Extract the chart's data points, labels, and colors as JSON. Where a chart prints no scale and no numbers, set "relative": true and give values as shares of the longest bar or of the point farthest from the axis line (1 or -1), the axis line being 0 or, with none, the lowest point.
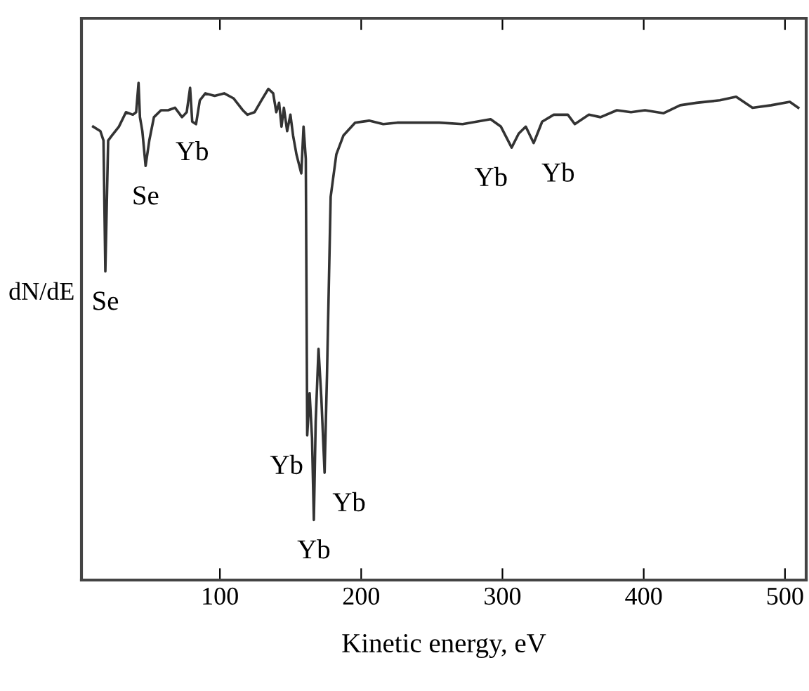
{
  "chart_data": {
    "type": "line",
    "relative": true,
    "xlabel": "Kinetic energy, eV",
    "ylabel": "dN/dE",
    "xlim": [
      2,
      515
    ],
    "xticks": [
      100,
      200,
      300,
      400,
      500
    ],
    "grid": false,
    "marker": "none",
    "line_style": "solid",
    "series": [
      {
        "color": "#333333",
        "x": [
          10.3,
          15.4,
          17.6,
          18.9,
          20.9,
          23.5,
          28.5,
          33.5,
          38.4,
          40.7,
          42.4,
          43.4,
          45.1,
          47.4,
          50.0,
          53.3,
          58.3,
          63.3,
          68.2,
          73.2,
          76.5,
          78.9,
          80.4,
          83.1,
          85.8,
          89.7,
          96.3,
          103.0,
          109.6,
          116.2,
          119.5,
          124.5,
          129.4,
          134.3,
          137.7,
          139.9,
          141.9,
          143.6,
          145.3,
          147.6,
          149.9,
          151.8,
          154.2,
          157.6,
          159.2,
          160.8,
          161.8,
          163.5,
          165.2,
          166.5,
          167.8,
          169.8,
          171.8,
          174.1,
          175.8,
          178.4,
          182.4,
          187.4,
          195.7,
          205.6,
          215.6,
          225.5,
          235.3,
          255.2,
          271.8,
          291.6,
          298.9,
          306.5,
          311.5,
          316.5,
          322.1,
          328.1,
          336.3,
          346.3,
          351.2,
          361.2,
          369.4,
          381.0,
          391.0,
          400.9,
          414.1,
          425.8,
          437.4,
          453.9,
          465.4,
          477.0,
          490.2,
          503.4,
          509.4
        ],
        "values": [
          0.912,
          0.903,
          0.884,
          0.621,
          0.884,
          0.894,
          0.912,
          0.941,
          0.936,
          0.941,
          1.0,
          0.931,
          0.903,
          0.833,
          0.884,
          0.931,
          0.945,
          0.945,
          0.95,
          0.931,
          0.941,
          0.99,
          0.922,
          0.917,
          0.965,
          0.979,
          0.974,
          0.979,
          0.969,
          0.945,
          0.936,
          0.941,
          0.965,
          0.988,
          0.979,
          0.941,
          0.96,
          0.912,
          0.95,
          0.903,
          0.936,
          0.894,
          0.856,
          0.818,
          0.912,
          0.847,
          0.291,
          0.376,
          0.286,
          0.121,
          0.319,
          0.465,
          0.366,
          0.216,
          0.413,
          0.771,
          0.856,
          0.894,
          0.92,
          0.924,
          0.917,
          0.92,
          0.92,
          0.92,
          0.917,
          0.927,
          0.912,
          0.87,
          0.898,
          0.912,
          0.879,
          0.922,
          0.936,
          0.936,
          0.917,
          0.936,
          0.931,
          0.945,
          0.941,
          0.945,
          0.939,
          0.955,
          0.96,
          0.965,
          0.972,
          0.95,
          0.955,
          0.962,
          0.95
        ]
      }
    ],
    "annotations": [
      {
        "text": "Se",
        "x": 18.9,
        "y": 0.621
      },
      {
        "text": "Se",
        "x": 47.4,
        "y": 0.833
      },
      {
        "text": "Yb",
        "x": 80.4,
        "y": 0.922
      },
      {
        "text": "Yb",
        "x": 161.8,
        "y": 0.291
      },
      {
        "text": "Yb",
        "x": 166.5,
        "y": 0.121
      },
      {
        "text": "Yb",
        "x": 174.1,
        "y": 0.216
      },
      {
        "text": "Yb",
        "x": 306.5,
        "y": 0.87
      },
      {
        "text": "Yb",
        "x": 322.1,
        "y": 0.879
      }
    ]
  }
}
